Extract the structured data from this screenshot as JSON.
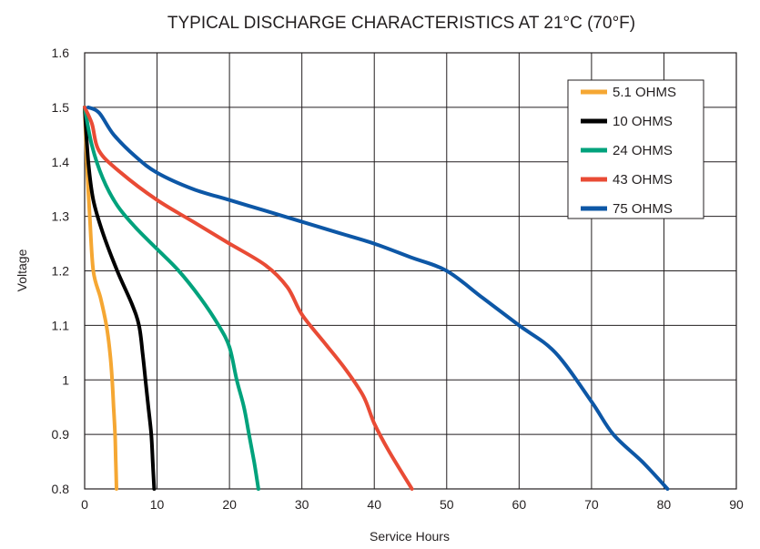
{
  "chart_data": {
    "type": "line",
    "title": "TYPICAL DISCHARGE CHARACTERISTICS AT 21°C (70°F)",
    "xlabel": "Service Hours",
    "ylabel": "Voltage",
    "xlim": [
      0,
      90
    ],
    "ylim": [
      0.8,
      1.6
    ],
    "x_ticks": [
      0,
      10,
      20,
      30,
      40,
      50,
      60,
      70,
      80,
      90
    ],
    "y_ticks": [
      0.8,
      0.9,
      1,
      1.1,
      1.2,
      1.3,
      1.4,
      1.5,
      1.6
    ],
    "y_tick_labels": [
      "0.8",
      "0.9",
      "1",
      "1.1",
      "1.2",
      "1.3",
      "1.4",
      "1.5",
      "1.6"
    ],
    "grid": true,
    "legend_position": "top-right",
    "series": [
      {
        "name": "5.1 OHMS",
        "color": "#f5a733",
        "points": [
          [
            0,
            1.5
          ],
          [
            0.3,
            1.4
          ],
          [
            0.7,
            1.3
          ],
          [
            1.2,
            1.2
          ],
          [
            2.2,
            1.15
          ],
          [
            3,
            1.1
          ],
          [
            3.5,
            1.05
          ],
          [
            3.8,
            1.0
          ],
          [
            4.0,
            0.95
          ],
          [
            4.2,
            0.9
          ],
          [
            4.3,
            0.85
          ],
          [
            4.4,
            0.8
          ]
        ]
      },
      {
        "name": "10 OHMS",
        "color": "#000000",
        "points": [
          [
            0,
            1.5
          ],
          [
            0.5,
            1.4
          ],
          [
            1.2,
            1.33
          ],
          [
            2.5,
            1.27
          ],
          [
            4.5,
            1.2
          ],
          [
            6.5,
            1.14
          ],
          [
            7.5,
            1.1
          ],
          [
            8,
            1.05
          ],
          [
            8.4,
            1.0
          ],
          [
            8.8,
            0.95
          ],
          [
            9.2,
            0.9
          ],
          [
            9.4,
            0.85
          ],
          [
            9.6,
            0.8
          ]
        ]
      },
      {
        "name": "24 OHMS",
        "color": "#00a27c",
        "points": [
          [
            0,
            1.5
          ],
          [
            1,
            1.43
          ],
          [
            2.5,
            1.37
          ],
          [
            4.5,
            1.32
          ],
          [
            7,
            1.28
          ],
          [
            10,
            1.24
          ],
          [
            13,
            1.2
          ],
          [
            16,
            1.15
          ],
          [
            18.5,
            1.1
          ],
          [
            20,
            1.06
          ],
          [
            21,
            1.0
          ],
          [
            22,
            0.95
          ],
          [
            22.7,
            0.9
          ],
          [
            23.4,
            0.85
          ],
          [
            24,
            0.8
          ]
        ]
      },
      {
        "name": "43 OHMS",
        "color": "#e94b35",
        "points": [
          [
            0,
            1.5
          ],
          [
            1,
            1.47
          ],
          [
            2,
            1.42
          ],
          [
            5,
            1.38
          ],
          [
            10,
            1.33
          ],
          [
            15,
            1.29
          ],
          [
            20,
            1.25
          ],
          [
            25,
            1.21
          ],
          [
            28,
            1.17
          ],
          [
            30,
            1.12
          ],
          [
            33,
            1.07
          ],
          [
            36,
            1.02
          ],
          [
            38.5,
            0.97
          ],
          [
            40,
            0.92
          ],
          [
            42,
            0.87
          ],
          [
            45.2,
            0.8
          ]
        ]
      },
      {
        "name": "75 OHMS",
        "color": "#0d57a6",
        "points": [
          [
            0.5,
            1.5
          ],
          [
            2,
            1.49
          ],
          [
            4,
            1.45
          ],
          [
            7,
            1.41
          ],
          [
            10,
            1.38
          ],
          [
            15,
            1.35
          ],
          [
            20,
            1.33
          ],
          [
            25,
            1.31
          ],
          [
            30,
            1.29
          ],
          [
            35,
            1.27
          ],
          [
            40,
            1.25
          ],
          [
            45,
            1.225
          ],
          [
            50,
            1.2
          ],
          [
            55,
            1.15
          ],
          [
            60,
            1.1
          ],
          [
            65,
            1.05
          ],
          [
            70,
            0.96
          ],
          [
            73,
            0.9
          ],
          [
            77,
            0.85
          ],
          [
            80.5,
            0.8
          ]
        ]
      }
    ]
  }
}
